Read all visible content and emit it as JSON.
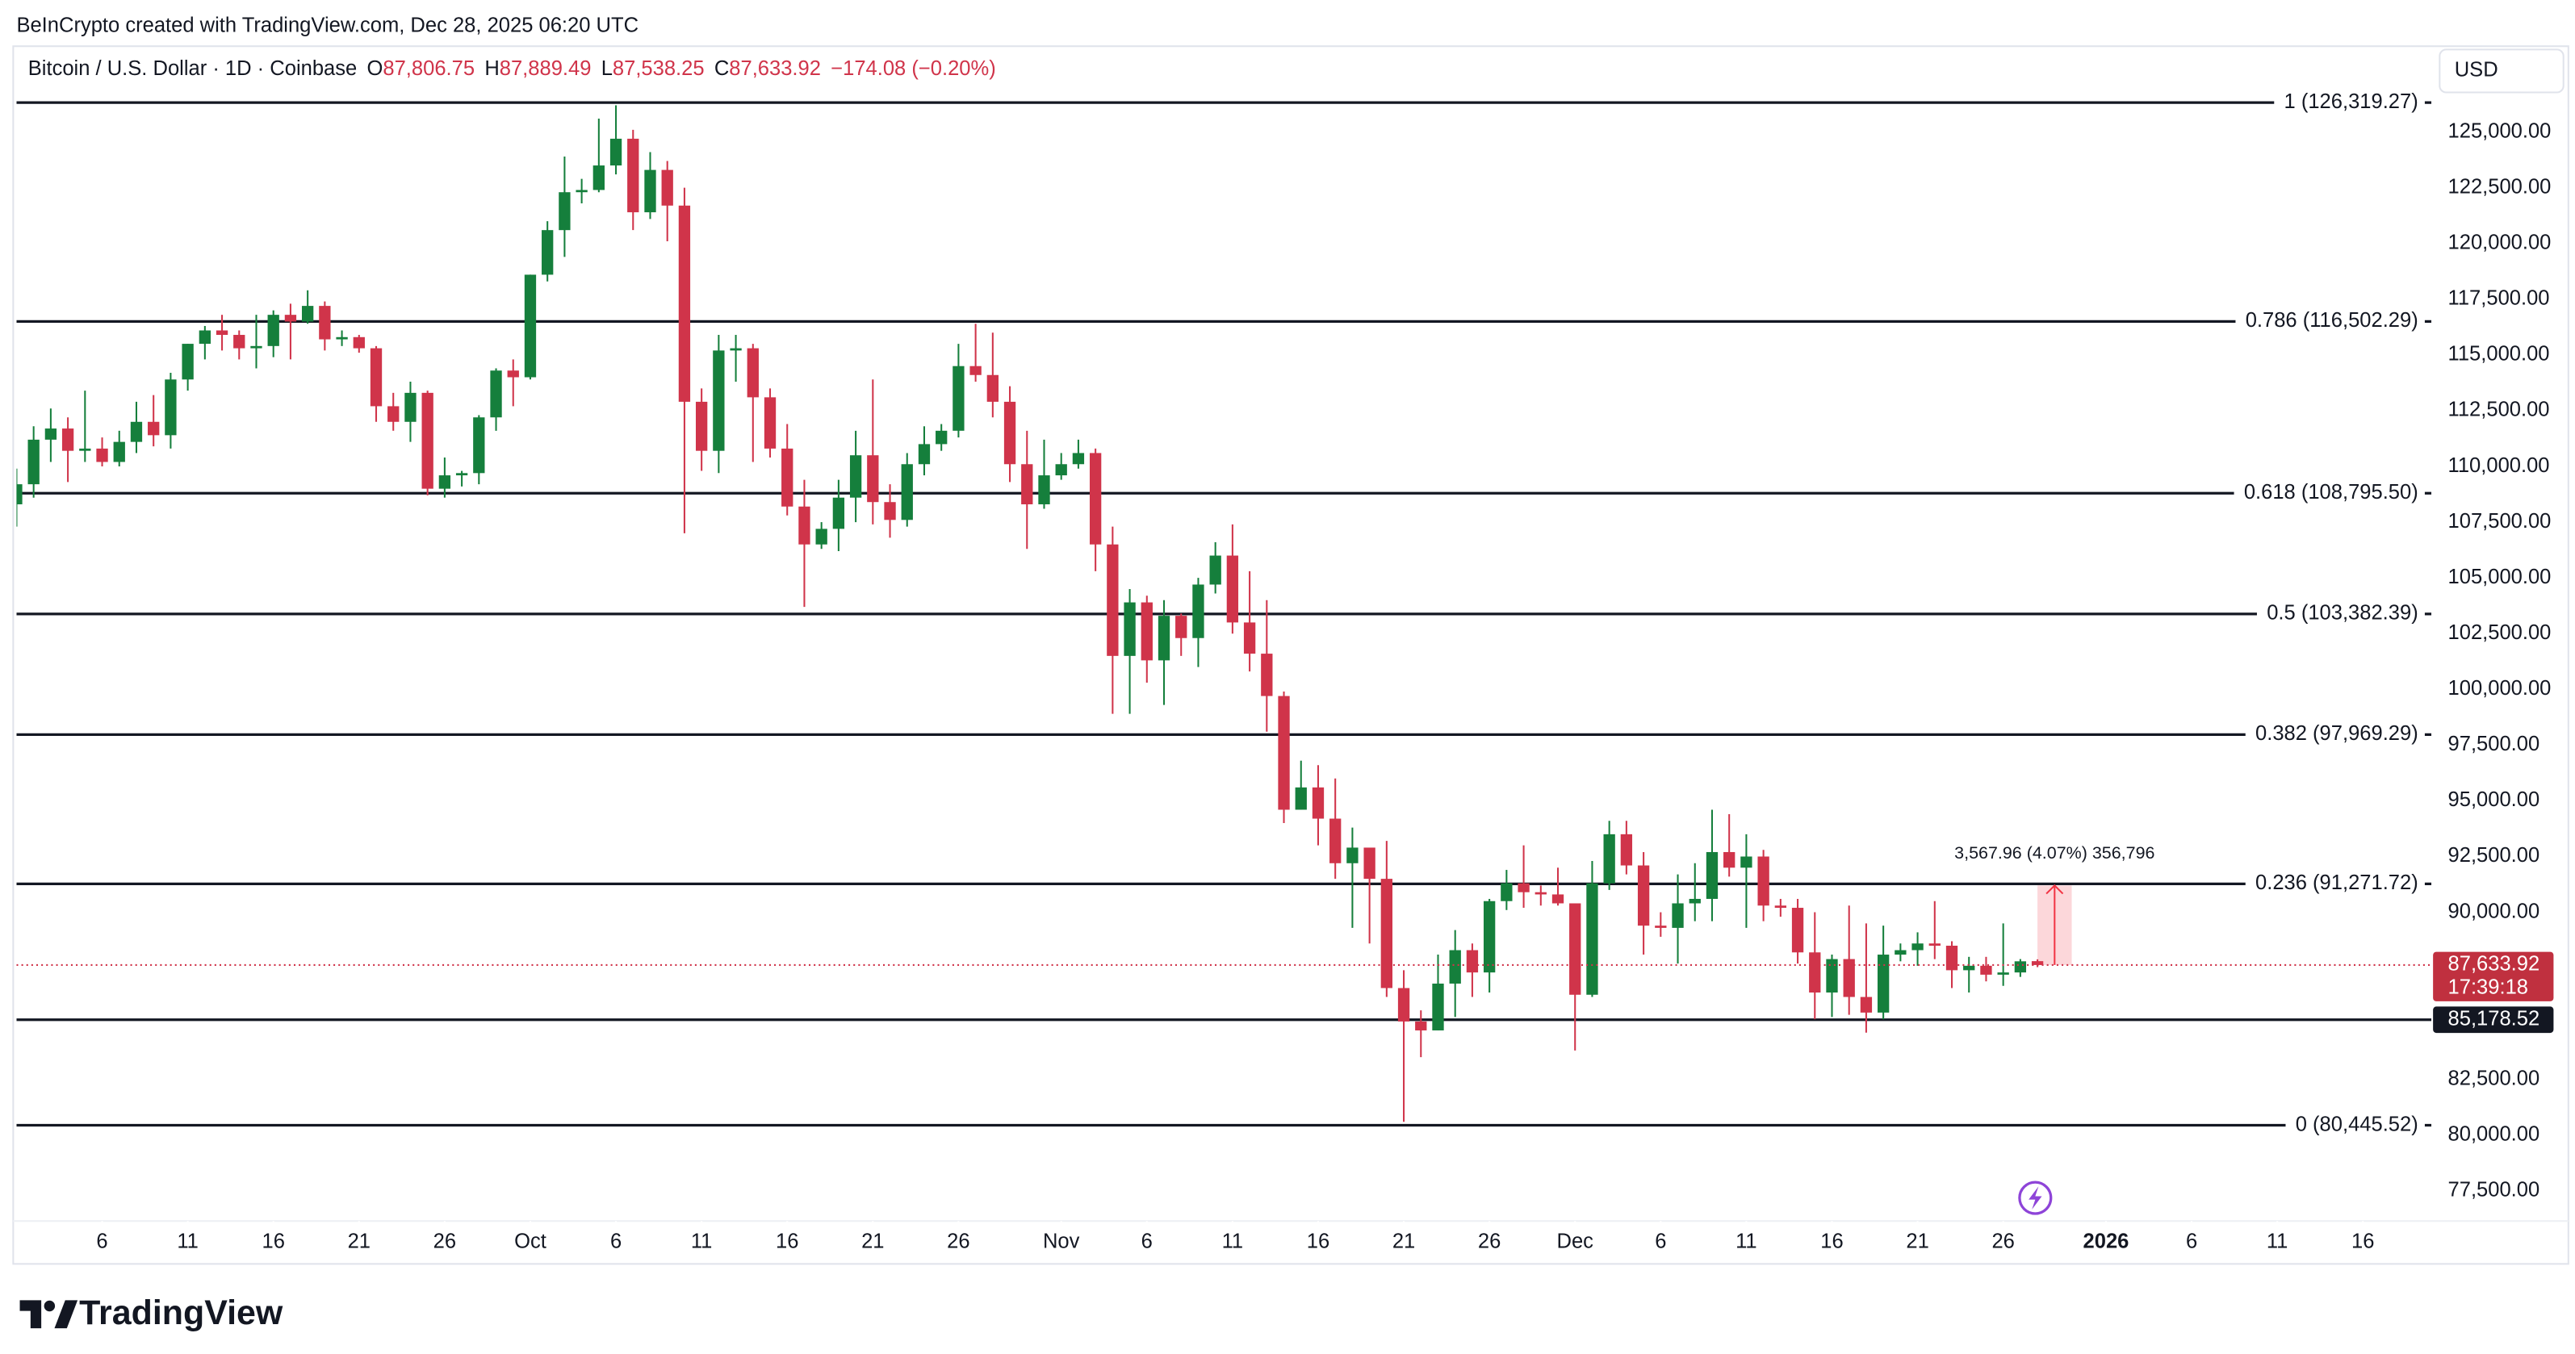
{
  "chart_data": {
    "type": "candlestick",
    "credit": "BeInCrypto created with TradingView.com, Dec 28, 2025 06:20 UTC",
    "title": "Bitcoin / U.S. Dollar · 1D · Coinbase",
    "legend": {
      "open_label": "O",
      "open": "87,806.75",
      "high_label": "H",
      "high": "87,889.49",
      "low_label": "L",
      "low": "87,538.25",
      "close_label": "C",
      "close": "87,633.92",
      "change": "−174.08 (−0.20%)"
    },
    "currency": "USD",
    "brand": "TradingView",
    "up_color": "#157f3c",
    "down_color": "#d0344a",
    "x": [
      "2025-09-01",
      "2025-09-02",
      "2025-09-03",
      "2025-09-04",
      "2025-09-05",
      "2025-09-06",
      "2025-09-07",
      "2025-09-08",
      "2025-09-09",
      "2025-09-10",
      "2025-09-11",
      "2025-09-12",
      "2025-09-13",
      "2025-09-14",
      "2025-09-15",
      "2025-09-16",
      "2025-09-17",
      "2025-09-18",
      "2025-09-19",
      "2025-09-20",
      "2025-09-21",
      "2025-09-22",
      "2025-09-23",
      "2025-09-24",
      "2025-09-25",
      "2025-09-26",
      "2025-09-27",
      "2025-09-28",
      "2025-09-29",
      "2025-09-30",
      "2025-10-01",
      "2025-10-02",
      "2025-10-03",
      "2025-10-04",
      "2025-10-05",
      "2025-10-06",
      "2025-10-07",
      "2025-10-08",
      "2025-10-09",
      "2025-10-10",
      "2025-10-11",
      "2025-10-12",
      "2025-10-13",
      "2025-10-14",
      "2025-10-15",
      "2025-10-16",
      "2025-10-17",
      "2025-10-18",
      "2025-10-19",
      "2025-10-20",
      "2025-10-21",
      "2025-10-22",
      "2025-10-23",
      "2025-10-24",
      "2025-10-25",
      "2025-10-26",
      "2025-10-27",
      "2025-10-28",
      "2025-10-29",
      "2025-10-30",
      "2025-10-31",
      "2025-11-01",
      "2025-11-02",
      "2025-11-03",
      "2025-11-04",
      "2025-11-05",
      "2025-11-06",
      "2025-11-07",
      "2025-11-08",
      "2025-11-09",
      "2025-11-10",
      "2025-11-11",
      "2025-11-12",
      "2025-11-13",
      "2025-11-14",
      "2025-11-15",
      "2025-11-16",
      "2025-11-17",
      "2025-11-18",
      "2025-11-19",
      "2025-11-20",
      "2025-11-21",
      "2025-11-22",
      "2025-11-23",
      "2025-11-24",
      "2025-11-25",
      "2025-11-26",
      "2025-11-27",
      "2025-11-28",
      "2025-11-29",
      "2025-11-30",
      "2025-12-01",
      "2025-12-02",
      "2025-12-03",
      "2025-12-04",
      "2025-12-05",
      "2025-12-06",
      "2025-12-07",
      "2025-12-08",
      "2025-12-09",
      "2025-12-10",
      "2025-12-11",
      "2025-12-12",
      "2025-12-13",
      "2025-12-14",
      "2025-12-15",
      "2025-12-16",
      "2025-12-17",
      "2025-12-18",
      "2025-12-19",
      "2025-12-20",
      "2025-12-21",
      "2025-12-22",
      "2025-12-23",
      "2025-12-24",
      "2025-12-25",
      "2025-12-26",
      "2025-12-27",
      "2025-12-28"
    ],
    "open": [
      108300,
      109200,
      111200,
      111700,
      110700,
      110800,
      110200,
      111100,
      112000,
      111400,
      113900,
      115500,
      116100,
      115900,
      115300,
      115400,
      116800,
      116500,
      117200,
      115700,
      115800,
      115300,
      112700,
      112000,
      113300,
      109000,
      109600,
      109700,
      112200,
      114300,
      114000,
      118600,
      120600,
      122300,
      122400,
      123500,
      124700,
      121400,
      123300,
      121700,
      112900,
      110700,
      115200,
      115300,
      113100,
      110800,
      108200,
      106500,
      107200,
      108600,
      110500,
      108400,
      107600,
      110100,
      111000,
      111600,
      114500,
      114100,
      112900,
      110100,
      108300,
      109600,
      110100,
      110600,
      106500,
      101500,
      103900,
      101300,
      103300,
      102300,
      104700,
      106000,
      103000,
      101600,
      99700,
      94600,
      95600,
      94200,
      92200,
      92900,
      91500,
      86600,
      85100,
      84700,
      86800,
      88300,
      87300,
      90500,
      91300,
      90900,
      90800,
      90400,
      86300,
      91300,
      93500,
      92100,
      89400,
      89300,
      90400,
      90600,
      92700,
      92000,
      92500,
      90300,
      90200,
      88200,
      86400,
      87900,
      86200,
      85500,
      88100,
      88300,
      88600,
      88500,
      87400,
      87600,
      87200,
      87300,
      87806.75
    ],
    "high": [
      109900,
      111800,
      112600,
      112200,
      113400,
      111300,
      111600,
      112900,
      113200,
      114200,
      115500,
      116300,
      116800,
      116100,
      116800,
      117000,
      117300,
      117900,
      117400,
      116100,
      115900,
      115400,
      113300,
      113800,
      113400,
      110400,
      109800,
      112300,
      114400,
      114800,
      118600,
      121000,
      123900,
      122900,
      125600,
      126200,
      125100,
      124100,
      123700,
      122500,
      113500,
      115900,
      115900,
      115500,
      113500,
      111900,
      109400,
      107500,
      109400,
      111600,
      113900,
      109200,
      110600,
      111800,
      111900,
      115500,
      116400,
      116000,
      113600,
      111600,
      111200,
      110600,
      111200,
      110800,
      107300,
      104500,
      104200,
      104000,
      103400,
      105000,
      106600,
      107400,
      105300,
      104000,
      99900,
      96800,
      96600,
      96000,
      93800,
      92900,
      93200,
      87400,
      85600,
      88100,
      89200,
      88600,
      90600,
      91900,
      93000,
      91200,
      92000,
      90400,
      92300,
      94100,
      94100,
      92700,
      90000,
      91700,
      92200,
      94600,
      94400,
      93500,
      92800,
      90600,
      90600,
      90000,
      88100,
      90300,
      89500,
      89400,
      88600,
      89100,
      90500,
      88700,
      88000,
      88000,
      89500,
      87900,
      87889.49
    ],
    "low": [
      107300,
      108600,
      110200,
      109300,
      110200,
      110000,
      110000,
      110600,
      110900,
      110800,
      113400,
      114800,
      115200,
      114800,
      114400,
      114900,
      114800,
      116400,
      115200,
      115400,
      115100,
      112000,
      111600,
      111100,
      108700,
      108600,
      109100,
      109200,
      111600,
      112700,
      113900,
      118300,
      119400,
      121800,
      122300,
      123100,
      120600,
      121100,
      120100,
      107000,
      109800,
      109700,
      113800,
      110200,
      110400,
      107800,
      103700,
      106300,
      106200,
      107500,
      107400,
      106800,
      107300,
      109600,
      110700,
      111300,
      113800,
      112200,
      109300,
      106300,
      108100,
      109400,
      109900,
      105300,
      98900,
      98900,
      100300,
      99300,
      101500,
      101000,
      104300,
      102500,
      100800,
      98100,
      94000,
      94600,
      93000,
      91500,
      89300,
      88600,
      86200,
      80600,
      83500,
      84700,
      85300,
      86200,
      86400,
      90100,
      90200,
      90300,
      90300,
      83800,
      86200,
      91000,
      91700,
      88100,
      88900,
      87700,
      89600,
      89600,
      91600,
      89300,
      89600,
      89800,
      87700,
      85200,
      85300,
      85400,
      84600,
      85200,
      87800,
      87600,
      87900,
      86600,
      86400,
      86900,
      86700,
      87100,
      87538.25
    ],
    "close": [
      109200,
      111200,
      111700,
      110700,
      110800,
      110200,
      111100,
      112000,
      111400,
      113900,
      115500,
      116100,
      115900,
      115300,
      115400,
      116800,
      116500,
      117200,
      115700,
      115800,
      115300,
      112700,
      112000,
      113300,
      109000,
      109600,
      109700,
      112200,
      114300,
      114000,
      118600,
      120600,
      122300,
      122400,
      123500,
      124700,
      121400,
      123300,
      121700,
      112900,
      110700,
      115200,
      115300,
      113100,
      110800,
      108200,
      106500,
      107200,
      108600,
      110500,
      108400,
      107600,
      110100,
      111000,
      111600,
      114500,
      114100,
      112900,
      110100,
      108300,
      109600,
      110100,
      110600,
      106500,
      101500,
      103900,
      101300,
      103300,
      102300,
      104700,
      106000,
      103000,
      101600,
      99700,
      94600,
      95600,
      94200,
      92200,
      92900,
      91500,
      86600,
      85100,
      84700,
      86800,
      88300,
      87300,
      90500,
      91300,
      90900,
      90800,
      90400,
      86300,
      91300,
      93500,
      92100,
      89400,
      89300,
      90400,
      90600,
      92700,
      92000,
      92500,
      90300,
      90200,
      88200,
      86400,
      87900,
      86200,
      85500,
      88100,
      88300,
      88600,
      88500,
      87400,
      87600,
      87200,
      87300,
      87800,
      87633.92
    ],
    "xlim": [
      "2025-09-01",
      "2026-01-20"
    ],
    "xticks": [
      {
        "value": "2025-09-06",
        "label": "6"
      },
      {
        "value": "2025-09-11",
        "label": "11"
      },
      {
        "value": "2025-09-16",
        "label": "16"
      },
      {
        "value": "2025-09-21",
        "label": "21"
      },
      {
        "value": "2025-09-26",
        "label": "26"
      },
      {
        "value": "2025-10-01",
        "label": "Oct"
      },
      {
        "value": "2025-10-06",
        "label": "6"
      },
      {
        "value": "2025-10-11",
        "label": "11"
      },
      {
        "value": "2025-10-16",
        "label": "16"
      },
      {
        "value": "2025-10-21",
        "label": "21"
      },
      {
        "value": "2025-10-26",
        "label": "26"
      },
      {
        "value": "2025-11-01",
        "label": "Nov"
      },
      {
        "value": "2025-11-06",
        "label": "6"
      },
      {
        "value": "2025-11-11",
        "label": "11"
      },
      {
        "value": "2025-11-16",
        "label": "16"
      },
      {
        "value": "2025-11-21",
        "label": "21"
      },
      {
        "value": "2025-11-26",
        "label": "26"
      },
      {
        "value": "2025-12-01",
        "label": "Dec"
      },
      {
        "value": "2025-12-06",
        "label": "6"
      },
      {
        "value": "2025-12-11",
        "label": "11"
      },
      {
        "value": "2025-12-16",
        "label": "16"
      },
      {
        "value": "2025-12-21",
        "label": "21"
      },
      {
        "value": "2025-12-26",
        "label": "26"
      },
      {
        "value": "2026-01-01",
        "label": "2026"
      },
      {
        "value": "2026-01-06",
        "label": "6"
      },
      {
        "value": "2026-01-11",
        "label": "11"
      },
      {
        "value": "2026-01-16",
        "label": "16"
      }
    ],
    "ylim": [
      76150,
      128850
    ],
    "yticks": [
      {
        "value": 77500,
        "label": "77,500.00"
      },
      {
        "value": 80000,
        "label": "80,000.00"
      },
      {
        "value": 82500,
        "label": "82,500.00"
      },
      {
        "value": 85000,
        "label": "85,000.00"
      },
      {
        "value": 87500,
        "label": "87,500.00"
      },
      {
        "value": 90000,
        "label": "90,000.00"
      },
      {
        "value": 92500,
        "label": "92,500.00"
      },
      {
        "value": 95000,
        "label": "95,000.00"
      },
      {
        "value": 97500,
        "label": "97,500.00"
      },
      {
        "value": 100000,
        "label": "100,000.00"
      },
      {
        "value": 102500,
        "label": "102,500.00"
      },
      {
        "value": 105000,
        "label": "105,000.00"
      },
      {
        "value": 107500,
        "label": "107,500.00"
      },
      {
        "value": 110000,
        "label": "110,000.00"
      },
      {
        "value": 112500,
        "label": "112,500.00"
      },
      {
        "value": 115000,
        "label": "115,000.00"
      },
      {
        "value": 117500,
        "label": "117,500.00"
      },
      {
        "value": 120000,
        "label": "120,000.00"
      },
      {
        "value": 122500,
        "label": "122,500.00"
      },
      {
        "value": 125000,
        "label": "125,000.00"
      }
    ],
    "fib_levels": [
      {
        "value": 126319.27,
        "label": "1 (126,319.27)"
      },
      {
        "value": 116502.29,
        "label": "0.786 (116,502.29)"
      },
      {
        "value": 108795.5,
        "label": "0.618 (108,795.50)"
      },
      {
        "value": 103382.39,
        "label": "0.5 (103,382.39)"
      },
      {
        "value": 97969.29,
        "label": "0.382 (97,969.29)"
      },
      {
        "value": 91271.72,
        "label": "0.236 (91,271.72)"
      },
      {
        "value": 80445.52,
        "label": "0 (80,445.52)"
      }
    ],
    "price_lines": [
      {
        "value": 85178.52,
        "label": "85,178.52"
      }
    ],
    "last_price": {
      "value": 87633.92,
      "label": "87,633.92",
      "countdown": "17:39:18"
    },
    "measure": {
      "from": 87633.92,
      "to": 91201.88,
      "start": "2025-12-28",
      "end": "2025-12-30",
      "label": "3,567.96 (4.07%) 356,796"
    }
  }
}
